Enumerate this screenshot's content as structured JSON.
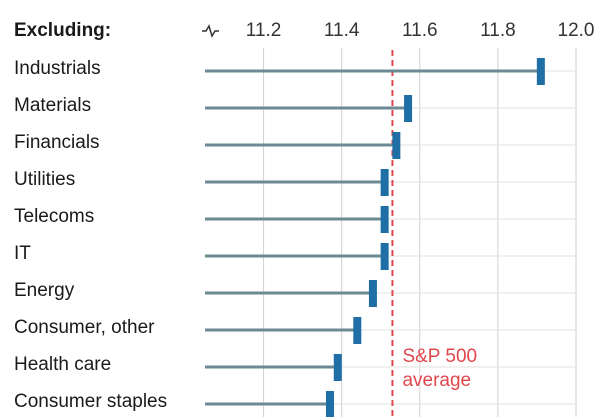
{
  "chart_data": {
    "type": "dot",
    "header": "Excluding:",
    "categories": [
      "Industrials",
      "Materials",
      "Financials",
      "Utilities",
      "Telecoms",
      "IT",
      "Energy",
      "Consumer, other",
      "Health care",
      "Consumer staples"
    ],
    "values": [
      11.91,
      11.57,
      11.54,
      11.51,
      11.51,
      11.51,
      11.48,
      11.44,
      11.39,
      11.37
    ],
    "color": "#1f6ea6",
    "line_color": "#6b8a93",
    "xlim": [
      11.05,
      12.0
    ],
    "xticks": [
      11.2,
      11.4,
      11.6,
      11.8,
      {
        "value": 12.0,
        "label": "12.0"
      }
    ],
    "grid": true,
    "reference_line": {
      "value": 11.53,
      "color": "#e0474c",
      "label": [
        "S&P 500",
        "average"
      ]
    }
  }
}
